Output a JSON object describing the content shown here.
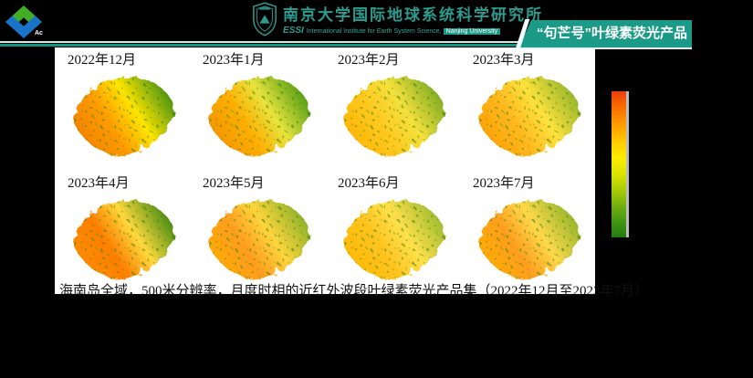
{
  "header": {
    "logo_caption": "Ac",
    "university_title": "南京大学国际地球系统科学研究所",
    "subtitle_abbr": "ESSI",
    "subtitle_text": "International Institute for Earth System Science,",
    "subtitle_chip": "Nanjing University",
    "product_banner": "“句芒号”叶绿素荧光产品",
    "brand_teal": "#1a9a87"
  },
  "content": {
    "months": [
      {
        "label": "2022年12月",
        "palette": [
          "#f07f00",
          "#ff9b00",
          "#ffe400",
          "#3f8f12"
        ]
      },
      {
        "label": "2023年1月",
        "palette": [
          "#f29200",
          "#ffae00",
          "#e8e33c",
          "#4c9a14"
        ]
      },
      {
        "label": "2023年2月",
        "palette": [
          "#ffb400",
          "#ffc81e",
          "#f5e03c",
          "#79aa22"
        ]
      },
      {
        "label": "2023年3月",
        "palette": [
          "#ff9e00",
          "#ffb81e",
          "#ffe13c",
          "#8fb42a"
        ]
      },
      {
        "label": "2023年4月",
        "palette": [
          "#ff8c00",
          "#ff7f00",
          "#ffd83c",
          "#3c8812"
        ]
      },
      {
        "label": "2023年5月",
        "palette": [
          "#ffaa00",
          "#ff9d1e",
          "#ffd43c",
          "#86b028"
        ]
      },
      {
        "label": "2023年6月",
        "palette": [
          "#ffb800",
          "#ffc31e",
          "#ffe04a",
          "#9aba30"
        ]
      },
      {
        "label": "2023年7月",
        "palette": [
          "#ffac00",
          "#ff9e1e",
          "#ffd84a",
          "#8fb42a"
        ]
      }
    ],
    "caption": "海南岛全域，500米分辨率，月度时相的近红外波段叶绿素荧光产品集（2022年12月至2023年7月）",
    "colorbar": {
      "colors_top_to_bottom": [
        "#e93c0c",
        "#fe9900",
        "#fcee00",
        "#a6cc08",
        "#227b12"
      ]
    }
  }
}
